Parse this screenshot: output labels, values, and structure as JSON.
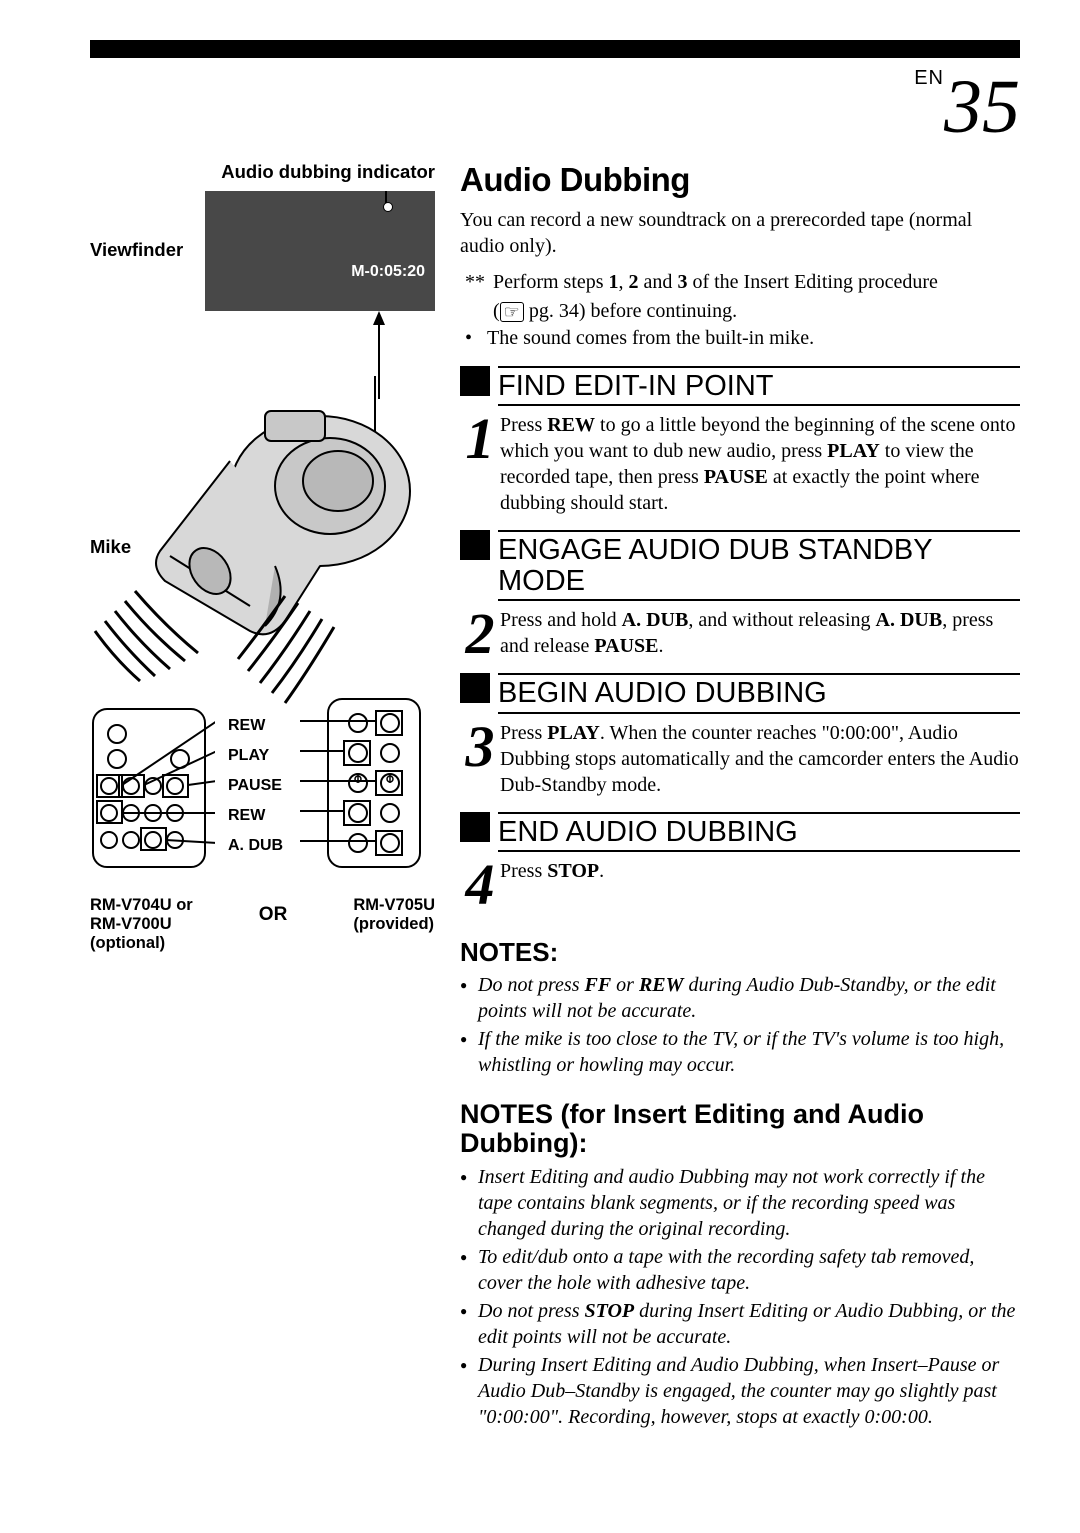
{
  "page": {
    "lang_label": "EN",
    "number": "35"
  },
  "left": {
    "indicator_label": "Audio dubbing indicator",
    "viewfinder_label": "Viewfinder",
    "counter": "M-0:05:20",
    "mike_label": "Mike",
    "remote_buttons": [
      "REW",
      "PLAY",
      "PAUSE",
      "REW",
      "A. DUB"
    ],
    "remote_left_model1": "RM-V704U or",
    "remote_left_model2": "RM-V700U",
    "remote_left_note": "(optional)",
    "or_label": "OR",
    "remote_right_model": "RM-V705U",
    "remote_right_note": "(provided)"
  },
  "main": {
    "title": "Audio Dubbing",
    "intro": "You can record a new soundtrack on a prerecorded tape (normal audio only).",
    "pre1a": "Perform steps ",
    "pre1b": " and ",
    "pre1c": " of the Insert Editing procedure",
    "pre1_pg": " pg. 34) before continuing.",
    "pre2": "The sound comes from the built-in mike.",
    "b1": "1",
    "b2": "2",
    "b3": "3",
    "steps": [
      {
        "num": "1",
        "heading": "FIND EDIT-IN POINT",
        "text_parts": [
          "Press ",
          "REW",
          " to go a little beyond the beginning of the scene onto which you want to dub new audio, press ",
          "PLAY",
          " to view the recorded tape, then press ",
          "PAUSE",
          " at exactly the point where dubbing should start."
        ]
      },
      {
        "num": "2",
        "heading": "ENGAGE AUDIO DUB STANDBY MODE",
        "text_parts": [
          "Press and hold ",
          "A. DUB",
          ", and without releasing ",
          "A. DUB",
          ", press and release ",
          "PAUSE",
          "."
        ]
      },
      {
        "num": "3",
        "heading": "BEGIN AUDIO DUBBING",
        "text_parts": [
          "Press ",
          "PLAY",
          ". When the counter reaches \"0:00:00\", Audio Dubbing stops automatically and the camcorder enters the Audio Dub-Standby mode."
        ]
      },
      {
        "num": "4",
        "heading": "END AUDIO DUBBING",
        "text_parts": [
          "Press ",
          "STOP",
          "."
        ]
      }
    ],
    "notes_title": "NOTES:",
    "notes": [
      [
        "Do not press ",
        "FF",
        " or ",
        "REW",
        " during Audio Dub-Standby, or the edit points will not be accurate."
      ],
      [
        "If the mike is too close to the TV, or if the TV's volume is too high, whistling or howling may occur."
      ]
    ],
    "notes2_title": "NOTES (for Insert Editing and Audio Dubbing):",
    "notes2": [
      [
        "Insert Editing and audio Dubbing may not work correctly if the tape contains blank segments, or if the recording speed was changed during the original recording."
      ],
      [
        "To edit/dub onto a tape with the recording safety tab removed, cover the hole with adhesive tape."
      ],
      [
        "Do not press ",
        "STOP",
        " during Insert Editing or Audio Dubbing, or the edit points will not be accurate."
      ],
      [
        "During Insert Editing and Audio Dubbing, when Insert–Pause or Audio Dub–Standby is engaged, the counter may go slightly past \"0:00:00\". Recording, however, stops at exactly 0:00:00."
      ]
    ]
  }
}
